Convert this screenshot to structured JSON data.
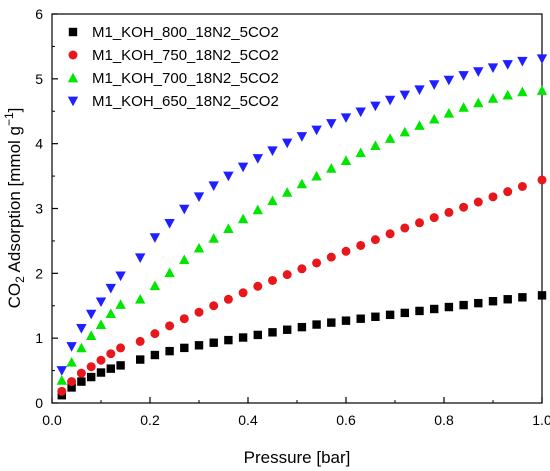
{
  "chart_data": {
    "type": "scatter",
    "title": "",
    "xlabel": "Pressure [bar]",
    "ylabel": {
      "prefix": "CO",
      "sub": "2",
      "middle": " Adsorption [mmol g",
      "sup": "−1",
      "suffix": "]"
    },
    "xlim": [
      0.0,
      1.0
    ],
    "ylim": [
      0,
      6
    ],
    "xticks": [
      "0.0",
      "0.2",
      "0.4",
      "0.6",
      "0.8",
      "1.0"
    ],
    "yticks": [
      "0",
      "1",
      "2",
      "3",
      "4",
      "5",
      "6"
    ],
    "grid": false,
    "legend_position": "top-left",
    "x": [
      0.02,
      0.04,
      0.06,
      0.08,
      0.1,
      0.12,
      0.14,
      0.18,
      0.21,
      0.24,
      0.27,
      0.3,
      0.33,
      0.36,
      0.39,
      0.42,
      0.45,
      0.48,
      0.51,
      0.54,
      0.57,
      0.6,
      0.63,
      0.66,
      0.69,
      0.72,
      0.75,
      0.78,
      0.81,
      0.84,
      0.87,
      0.9,
      0.93,
      0.96,
      1.0
    ],
    "series": [
      {
        "name": "M1_KOH_800_18N2_5CO2",
        "marker": "square",
        "color": "#000000",
        "values": [
          0.12,
          0.24,
          0.33,
          0.4,
          0.47,
          0.53,
          0.58,
          0.67,
          0.74,
          0.8,
          0.85,
          0.89,
          0.93,
          0.97,
          1.01,
          1.05,
          1.09,
          1.13,
          1.17,
          1.21,
          1.24,
          1.27,
          1.3,
          1.33,
          1.36,
          1.39,
          1.42,
          1.45,
          1.48,
          1.51,
          1.54,
          1.57,
          1.6,
          1.63,
          1.66
        ]
      },
      {
        "name": "M1_KOH_750_18N2_5CO2",
        "marker": "circle",
        "color": "#e8171c",
        "values": [
          0.18,
          0.33,
          0.46,
          0.56,
          0.66,
          0.76,
          0.85,
          0.95,
          1.07,
          1.19,
          1.3,
          1.4,
          1.5,
          1.6,
          1.7,
          1.8,
          1.89,
          1.98,
          2.07,
          2.16,
          2.25,
          2.34,
          2.43,
          2.52,
          2.61,
          2.7,
          2.78,
          2.86,
          2.94,
          3.02,
          3.1,
          3.18,
          3.26,
          3.34,
          3.44
        ]
      },
      {
        "name": "M1_KOH_700_18N2_5CO2",
        "marker": "triangle-up",
        "color": "#00e600",
        "values": [
          0.35,
          0.63,
          0.85,
          1.04,
          1.21,
          1.38,
          1.52,
          1.6,
          1.81,
          2.01,
          2.21,
          2.39,
          2.54,
          2.69,
          2.84,
          2.98,
          3.12,
          3.25,
          3.38,
          3.5,
          3.62,
          3.74,
          3.86,
          3.97,
          4.08,
          4.18,
          4.28,
          4.38,
          4.47,
          4.56,
          4.63,
          4.7,
          4.75,
          4.8,
          4.82
        ]
      },
      {
        "name": "M1_KOH_650_18N2_5CO2",
        "marker": "triangle-down",
        "color": "#1f1fff",
        "values": [
          0.5,
          0.87,
          1.15,
          1.37,
          1.56,
          1.77,
          1.96,
          2.24,
          2.55,
          2.77,
          2.99,
          3.18,
          3.35,
          3.5,
          3.64,
          3.77,
          3.89,
          4.01,
          4.11,
          4.21,
          4.31,
          4.4,
          4.49,
          4.58,
          4.67,
          4.75,
          4.83,
          4.91,
          4.98,
          5.05,
          5.11,
          5.17,
          5.22,
          5.27,
          5.31
        ]
      }
    ]
  }
}
